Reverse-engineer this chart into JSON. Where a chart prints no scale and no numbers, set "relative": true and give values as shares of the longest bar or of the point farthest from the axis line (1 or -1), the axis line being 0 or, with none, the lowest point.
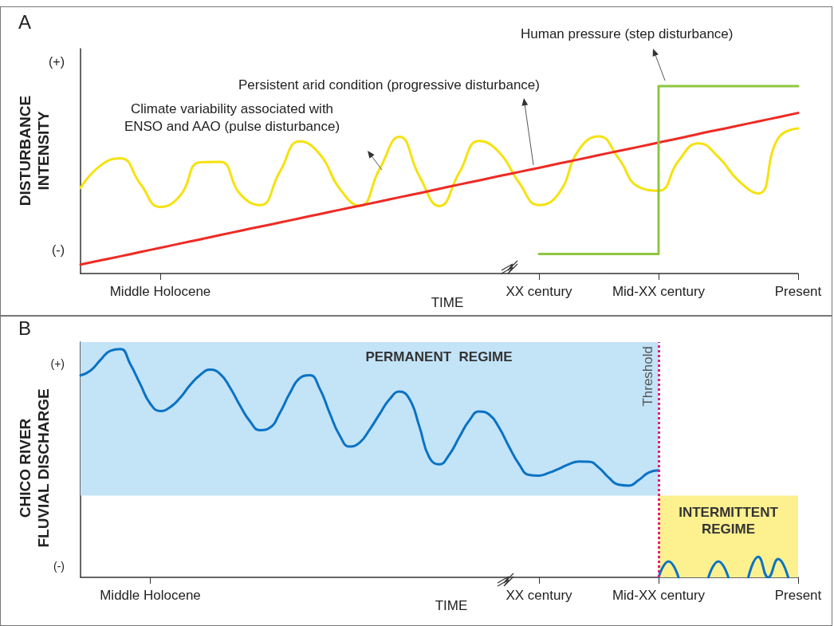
{
  "chart_data": [
    {
      "type": "line",
      "relative": true,
      "xlabel": "TIME",
      "ylabel": "DISTURBANCE\nINTENSITY",
      "marker": "none",
      "categories": [
        null,
        null,
        null,
        null,
        "Middle Holocene",
        null,
        null,
        null,
        null,
        null,
        null,
        null,
        null,
        null,
        null,
        null,
        null,
        null,
        null,
        null,
        null,
        null,
        null,
        "XX century",
        null,
        null,
        null,
        null,
        null,
        "Mid-XX century",
        null,
        null,
        null,
        null,
        null,
        null,
        "Present"
      ],
      "annotations": [
        "A",
        "(+)",
        "(-)"
      ],
      "series": [
        {
          "name": "Climate variability associated with\nENSO and AAO (pulse disturbance)",
          "color": "#f5e20f",
          "values": [
            0.457,
            0.576,
            0.615,
            0.479,
            0.355,
            0.416,
            0.594,
            0.596,
            0.425,
            0.365,
            0.543,
            0.705,
            0.637,
            0.453,
            0.361,
            0.557,
            0.73,
            0.519,
            0.36,
            0.538,
            0.707,
            0.647,
            0.485,
            0.365,
            0.428,
            0.66,
            0.732,
            0.613,
            0.462,
            0.442,
            0.601,
            0.695,
            0.622,
            0.496,
            0.427,
            0.722,
            0.774
          ]
        },
        {
          "name": "Persistent arid condition (progressive disturbance)",
          "color": "#ee2a24",
          "values": [
            0.048,
            0.07,
            0.092,
            0.115,
            0.137,
            0.16,
            0.182,
            0.205,
            0.228,
            0.25,
            0.272,
            0.295,
            0.317,
            0.34,
            0.362,
            0.384,
            0.407,
            0.429,
            0.452,
            0.475,
            0.497,
            0.52,
            0.542,
            0.564,
            0.587,
            0.609,
            0.632,
            0.654,
            0.676,
            0.699,
            0.721,
            0.745,
            0.767,
            0.789,
            0.812,
            0.834,
            0.857
          ]
        },
        {
          "name": "Human pressure (step disturbance)",
          "type": "step",
          "color": "#8dc63f",
          "values": [
            null,
            null,
            null,
            null,
            null,
            null,
            null,
            null,
            null,
            null,
            null,
            null,
            null,
            null,
            null,
            null,
            null,
            null,
            null,
            null,
            null,
            null,
            null,
            0.104,
            0.104,
            0.104,
            0.104,
            0.104,
            0.104,
            1,
            1,
            1,
            1,
            1,
            1,
            1,
            1
          ]
        }
      ]
    },
    {
      "type": "line",
      "relative": true,
      "xlabel": "TIME",
      "ylabel": "CHICO RIVER\nFLUVIAL DISCHARGE",
      "marker": "none",
      "categories": [
        null,
        null,
        null,
        null,
        null,
        null,
        null,
        "Middle Holocene",
        null,
        null,
        null,
        null,
        null,
        null,
        null,
        null,
        null,
        null,
        null,
        null,
        null,
        null,
        null,
        null,
        null,
        null,
        null,
        null,
        null,
        null,
        null,
        null,
        null,
        null,
        null,
        null,
        null,
        null,
        null,
        null,
        null,
        null,
        null,
        null,
        null,
        null,
        "XX century",
        null,
        null,
        null,
        null,
        null,
        null,
        null,
        null,
        null,
        null,
        null,
        "Mid-XX century",
        null,
        null,
        null,
        null,
        null,
        null,
        null,
        null,
        null,
        null,
        null,
        null,
        null,
        "Present"
      ],
      "annotations": [
        "B",
        "(+)",
        "(-)"
      ],
      "ref_lines": [
        {
          "axis": "x",
          "value": "Mid-XX century",
          "label": "Threshold",
          "color": "#e6197e",
          "line_style": "dotted"
        }
      ],
      "bands": [
        {
          "axis": "y",
          "from": 0.358,
          "to": 1.031,
          "label": "PERMANENT  REGIME",
          "color": "#c3e3f7"
        },
        {
          "axis": "y",
          "from": 0,
          "to": 0.358,
          "label": "INTERMITTENT\nREGIME",
          "color": "#fdf08f"
        }
      ],
      "series": [
        {
          "color": "#0a72c4",
          "values": [
            0.885,
            0.906,
            0.953,
            0.993,
            1.0,
            0.934,
            0.846,
            0.761,
            0.729,
            0.746,
            0.787,
            0.843,
            0.887,
            0.91,
            0.892,
            0.832,
            0.753,
            0.684,
            0.645,
            0.656,
            0.721,
            0.807,
            0.873,
            0.886,
            0.827,
            0.72,
            0.622,
            0.573,
            0.59,
            0.647,
            0.715,
            0.78,
            0.814,
            0.782,
            0.661,
            0.525,
            0.495,
            0.538,
            0.614,
            0.687,
            0.727,
            0.714,
            0.656,
            0.572,
            0.496,
            0.449,
            0.446,
            0.458,
            0.476,
            0.496,
            0.508,
            0.507,
            0.481,
            0.437,
            0.406,
            0.402,
            0.426,
            0.459,
            0.469,
            null,
            null,
            null,
            null,
            null,
            null,
            null,
            null,
            null,
            null,
            null,
            null,
            null,
            null
          ]
        },
        {
          "color": "#0a72c4",
          "values": [
            null,
            null,
            null,
            null,
            null,
            null,
            null,
            null,
            null,
            null,
            null,
            null,
            null,
            null,
            null,
            null,
            null,
            null,
            null,
            null,
            null,
            null,
            null,
            null,
            null,
            null,
            null,
            null,
            null,
            null,
            null,
            null,
            null,
            null,
            null,
            null,
            null,
            null,
            null,
            null,
            null,
            null,
            null,
            null,
            null,
            null,
            null,
            null,
            null,
            null,
            null,
            null,
            null,
            null,
            null,
            null,
            null,
            null,
            0,
            0.07,
            0,
            null,
            null,
            0,
            0.07,
            0,
            null,
            0,
            0.09,
            0,
            0.08,
            0,
            null
          ]
        }
      ]
    }
  ]
}
